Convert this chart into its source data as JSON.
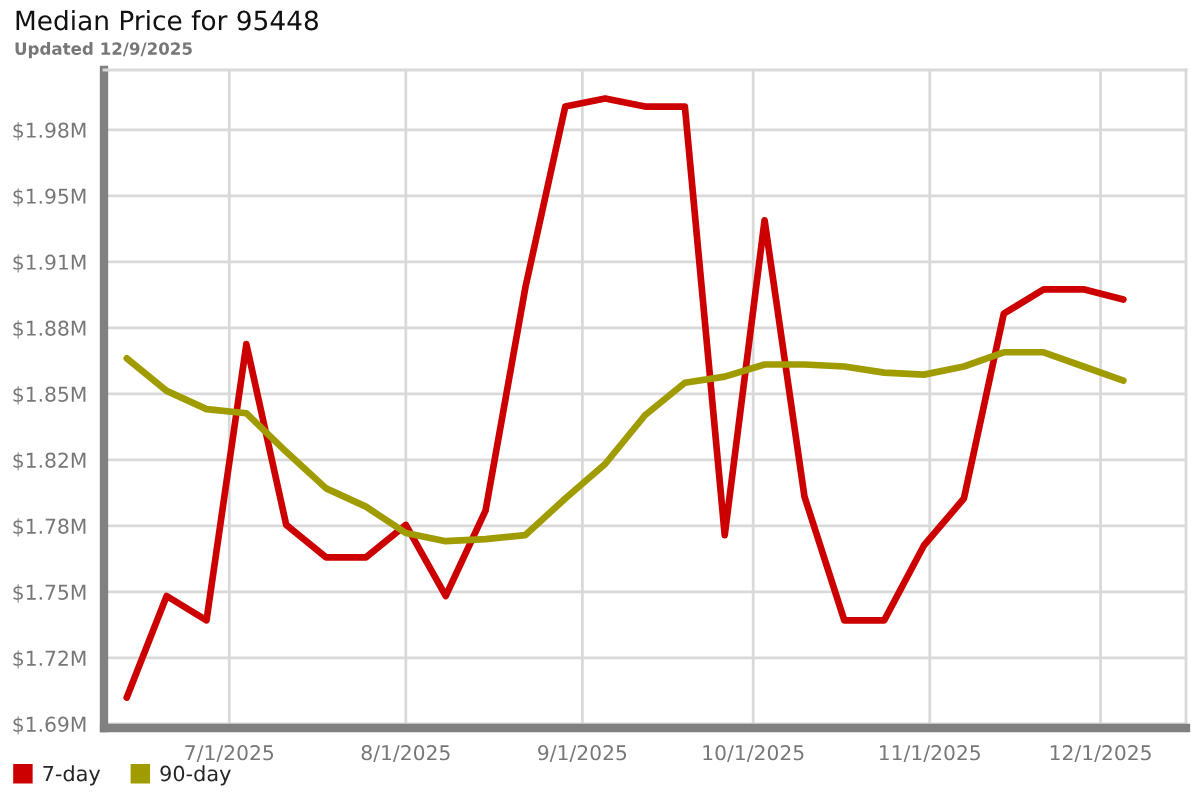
{
  "chart_data": {
    "type": "line",
    "title": "Median Price for 95448",
    "subtitle": "Updated 12/9/2025",
    "x": [
      "2025-06-13",
      "2025-06-20",
      "2025-06-27",
      "2025-07-04",
      "2025-07-11",
      "2025-07-18",
      "2025-07-25",
      "2025-08-01",
      "2025-08-08",
      "2025-08-15",
      "2025-08-22",
      "2025-08-29",
      "2025-09-05",
      "2025-09-12",
      "2025-09-19",
      "2025-09-26",
      "2025-10-03",
      "2025-10-10",
      "2025-10-17",
      "2025-10-24",
      "2025-10-31",
      "2025-11-07",
      "2025-11-14",
      "2025-11-21",
      "2025-11-28",
      "2025-12-05"
    ],
    "series": [
      {
        "name": "7-day",
        "color": "#cc0000",
        "values": [
          1.7,
          1.75,
          1.738,
          1.874,
          1.785,
          1.769,
          1.769,
          1.785,
          1.75,
          1.792,
          1.902,
          1.991,
          1.995,
          1.991,
          1.991,
          1.78,
          1.935,
          1.799,
          1.738,
          1.738,
          1.775,
          1.798,
          1.889,
          1.901,
          1.901,
          1.896
        ]
      },
      {
        "name": "90-day",
        "color": "#a09c00",
        "values": [
          1.867,
          1.851,
          1.842,
          1.84,
          1.821,
          1.803,
          1.794,
          1.781,
          1.777,
          1.778,
          1.78,
          1.798,
          1.815,
          1.839,
          1.855,
          1.858,
          1.864,
          1.864,
          1.863,
          1.86,
          1.859,
          1.863,
          1.87,
          1.87,
          1.863,
          1.856
        ]
      }
    ],
    "xlim": [
      "2025-06-09",
      "2025-12-16"
    ],
    "xticks": [
      {
        "value": "2025-07-01",
        "label": "7/1/2025"
      },
      {
        "value": "2025-08-01",
        "label": "8/1/2025"
      },
      {
        "value": "2025-09-01",
        "label": "9/1/2025"
      },
      {
        "value": "2025-10-01",
        "label": "10/1/2025"
      },
      {
        "value": "2025-11-01",
        "label": "11/1/2025"
      },
      {
        "value": "2025-12-01",
        "label": "12/1/2025"
      }
    ],
    "ylim": [
      1.685,
      2.009
    ],
    "yticks": [
      {
        "value": 1.687,
        "label": "$1.69M"
      },
      {
        "value": 1.7195,
        "label": "$1.72M"
      },
      {
        "value": 1.752,
        "label": "$1.75M"
      },
      {
        "value": 1.7845,
        "label": "$1.78M"
      },
      {
        "value": 1.817,
        "label": "$1.82M"
      },
      {
        "value": 1.8495,
        "label": "$1.85M"
      },
      {
        "value": 1.882,
        "label": "$1.88M"
      },
      {
        "value": 1.9145,
        "label": "$1.91M"
      },
      {
        "value": 1.947,
        "label": "$1.95M"
      },
      {
        "value": 1.9795,
        "label": "$1.98M"
      }
    ],
    "grid": true,
    "legend": "bottom",
    "marker": "none",
    "line_style": "solid"
  }
}
